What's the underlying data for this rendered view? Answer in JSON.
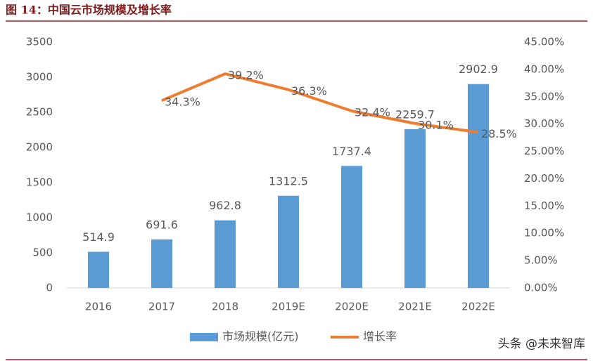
{
  "chart_data": {
    "type": "bar-line",
    "title": "图 14：中国云市场规模及增长率",
    "categories": [
      "2016",
      "2017",
      "2018",
      "2019E",
      "2020E",
      "2021E",
      "2022E"
    ],
    "series": [
      {
        "name": "市场规模(亿元)",
        "type": "bar",
        "color": "#5b9bd5",
        "values": [
          514.9,
          691.6,
          962.8,
          1312.5,
          1737.4,
          2259.7,
          2902.9
        ]
      },
      {
        "name": "增长率",
        "type": "line",
        "axis": "y2",
        "color": "#ed7d31",
        "values": [
          null,
          34.3,
          39.2,
          36.3,
          32.4,
          30.1,
          28.5
        ],
        "value_labels": [
          null,
          "34.3%",
          "39.2%",
          "36.3%",
          "32.4%",
          "30.1%",
          "28.5%"
        ]
      }
    ],
    "ylim": [
      0,
      3500
    ],
    "yticks": [
      0,
      500,
      1000,
      1500,
      2000,
      2500,
      3000,
      3500
    ],
    "y2lim": [
      0,
      45
    ],
    "y2ticks": [
      {
        "value": 0,
        "label": "0.00%"
      },
      {
        "value": 5,
        "label": "5.00%"
      },
      {
        "value": 10,
        "label": "10.00%"
      },
      {
        "value": 15,
        "label": "15.00%"
      },
      {
        "value": 20,
        "label": "20.00%"
      },
      {
        "value": 25,
        "label": "25.00%"
      },
      {
        "value": 30,
        "label": "30.00%"
      },
      {
        "value": 35,
        "label": "35.00%"
      },
      {
        "value": 40,
        "label": "40.00%"
      },
      {
        "value": 45,
        "label": "45.00%"
      }
    ],
    "grid": false,
    "legend": "bottom",
    "watermark": "头条 @未来智库"
  }
}
